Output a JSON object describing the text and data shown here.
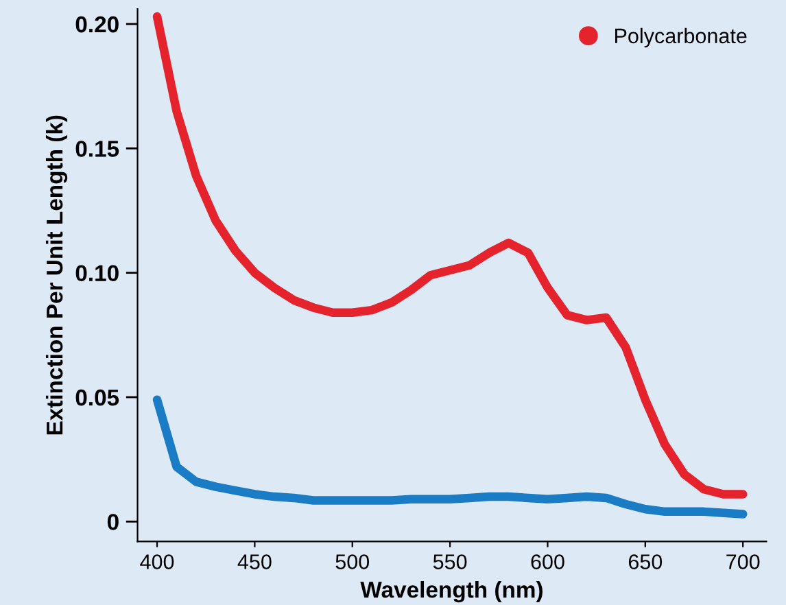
{
  "chart_data": {
    "type": "line",
    "xlabel": "Wavelength (nm)",
    "ylabel": "Extinction Per Unit Length (k)",
    "x": [
      400,
      410,
      420,
      430,
      440,
      450,
      460,
      470,
      480,
      490,
      500,
      510,
      520,
      530,
      540,
      550,
      560,
      570,
      580,
      590,
      600,
      610,
      620,
      630,
      640,
      650,
      660,
      670,
      680,
      690,
      700
    ],
    "series": [
      {
        "color": "#1a7cc4",
        "values": [
          0.049,
          0.022,
          0.016,
          0.014,
          0.0125,
          0.011,
          0.01,
          0.0095,
          0.0085,
          0.0085,
          0.0085,
          0.0085,
          0.0085,
          0.009,
          0.009,
          0.009,
          0.0095,
          0.01,
          0.01,
          0.0095,
          0.009,
          0.0095,
          0.01,
          0.0095,
          0.007,
          0.005,
          0.004,
          0.004,
          0.004,
          0.0035,
          0.003
        ]
      },
      {
        "name": "Polycarbonate",
        "color": "#e4232d",
        "values": [
          0.203,
          0.165,
          0.139,
          0.121,
          0.109,
          0.1,
          0.094,
          0.089,
          0.086,
          0.084,
          0.084,
          0.085,
          0.088,
          0.093,
          0.099,
          0.101,
          0.103,
          0.108,
          0.112,
          0.108,
          0.094,
          0.083,
          0.081,
          0.082,
          0.07,
          0.049,
          0.031,
          0.019,
          0.013,
          0.011,
          0.011
        ]
      }
    ],
    "xlim": [
      390,
      712
    ],
    "xticks": [
      400,
      450,
      500,
      550,
      600,
      650,
      700
    ],
    "ylim": [
      -0.008,
      0.206
    ],
    "yticks": [
      {
        "value": 0,
        "label": "0"
      },
      {
        "value": 0.05,
        "label": "0.05"
      },
      {
        "value": 0.1,
        "label": "0.10"
      },
      {
        "value": 0.15,
        "label": "0.15"
      },
      {
        "value": 0.2,
        "label": "0.20"
      }
    ],
    "legend": "top right",
    "marker": "none",
    "line_style": "solid"
  }
}
